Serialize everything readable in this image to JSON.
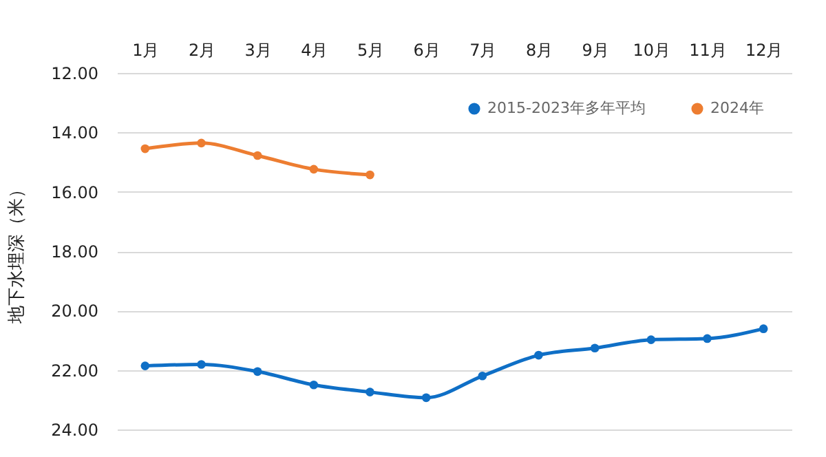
{
  "chart_data": {
    "type": "line",
    "ylabel": "地下水埋深（米）",
    "categories": [
      "1月",
      "2月",
      "3月",
      "4月",
      "5月",
      "6月",
      "7月",
      "8月",
      "9月",
      "10月",
      "11月",
      "12月"
    ],
    "series": [
      {
        "name": "2015-2023年多年平均",
        "color": "#0f6fc6",
        "values": [
          21.86,
          21.81,
          22.05,
          22.5,
          22.74,
          22.93,
          22.2,
          21.5,
          21.26,
          20.98,
          20.94,
          20.61
        ]
      },
      {
        "name": "2024年",
        "color": "#ed7d31",
        "values": [
          14.55,
          14.36,
          14.78,
          15.24,
          15.43,
          null,
          null,
          null,
          null,
          null,
          null,
          null
        ]
      }
    ],
    "ylim": [
      24,
      12
    ],
    "yticks": [
      {
        "value": 12,
        "label": "12.00"
      },
      {
        "value": 14,
        "label": "14.00"
      },
      {
        "value": 16,
        "label": "16.00"
      },
      {
        "value": 18,
        "label": "18.00"
      },
      {
        "value": 20,
        "label": "20.00"
      },
      {
        "value": 22,
        "label": "22.00"
      },
      {
        "value": 24,
        "label": "24.00"
      }
    ],
    "grid": "y",
    "legend": "top right",
    "marker": "circle",
    "line_style": "solid"
  }
}
